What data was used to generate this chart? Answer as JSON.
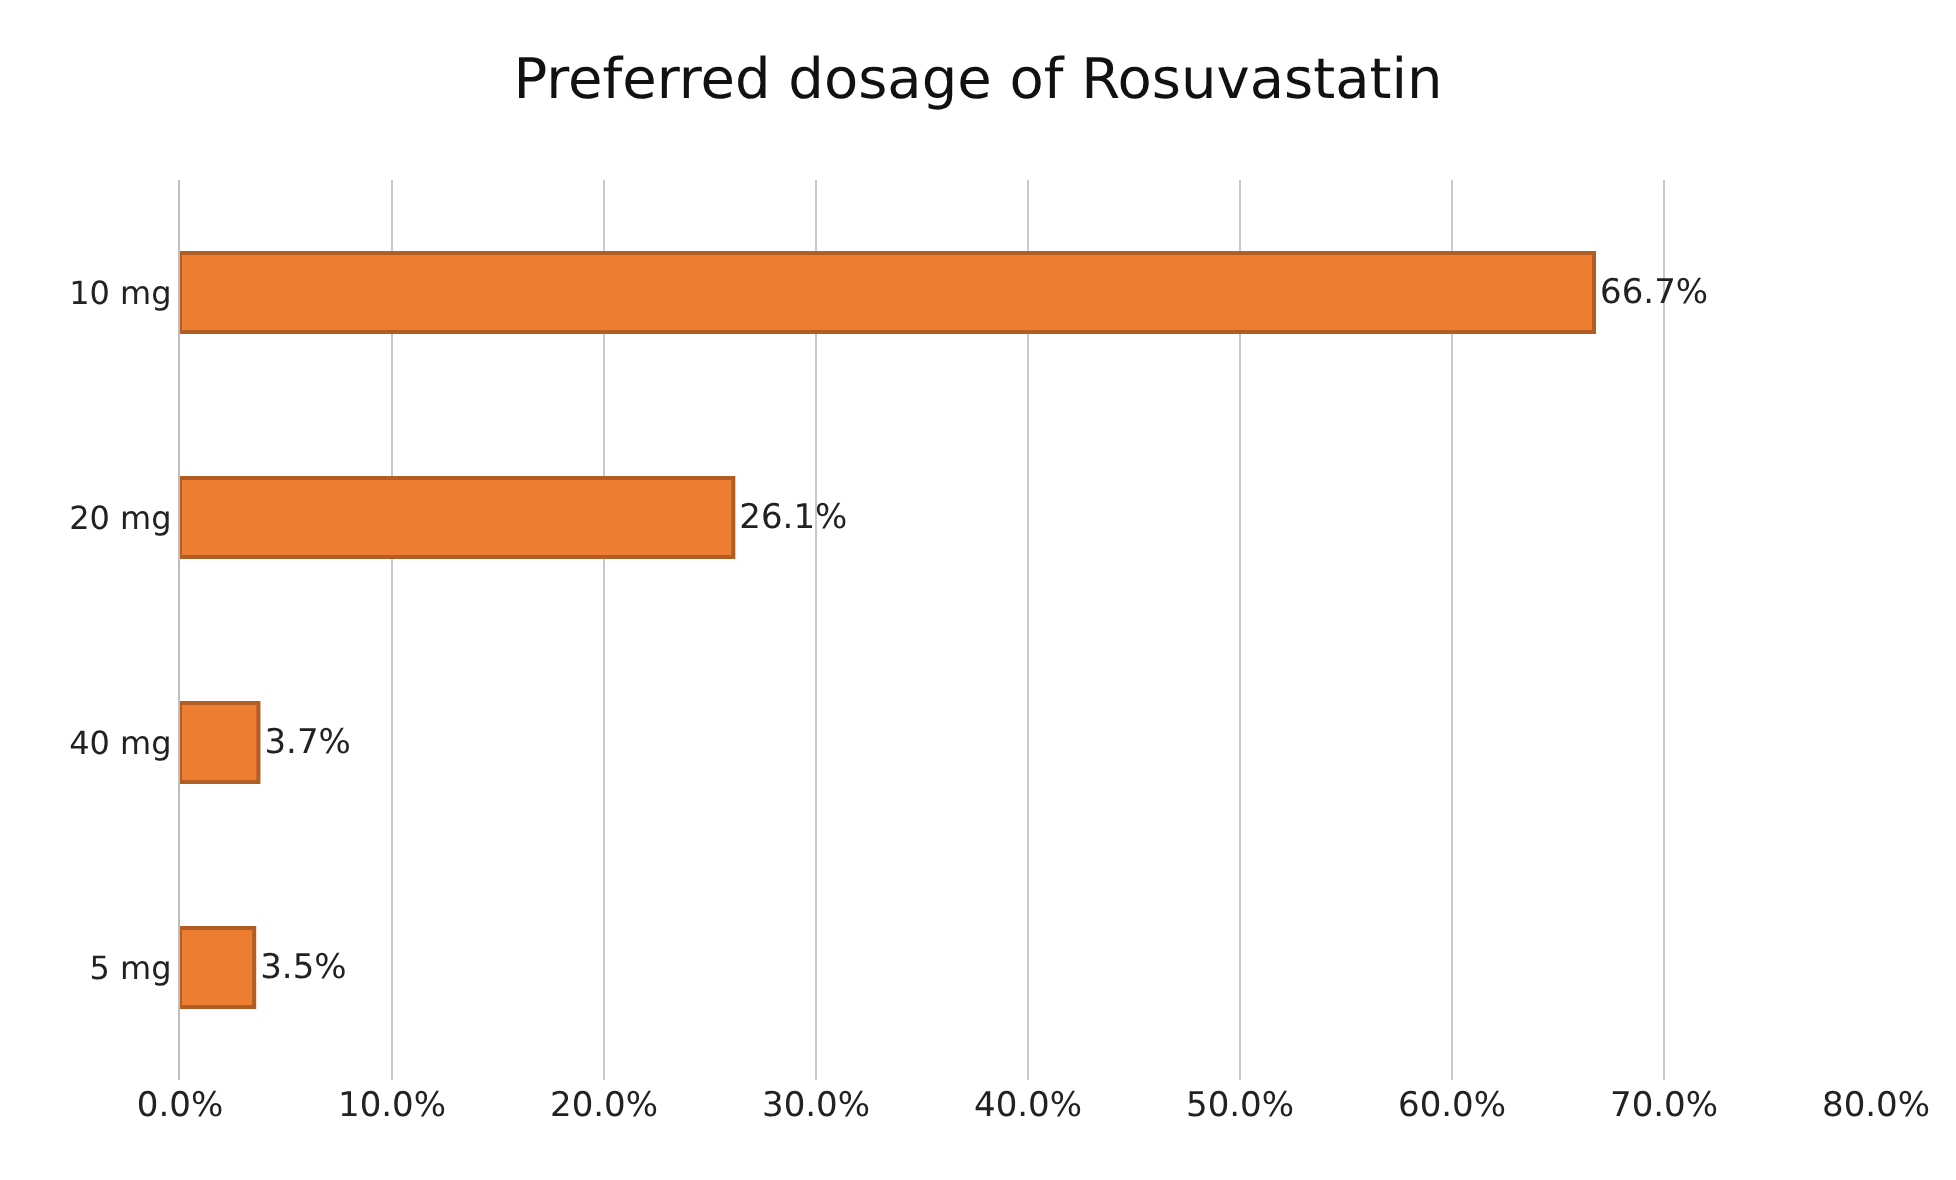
{
  "chart_data": {
    "type": "bar",
    "orientation": "horizontal",
    "title": "Preferred dosage of Rosuvastatin",
    "categories": [
      "10 mg",
      "20 mg",
      "40 mg",
      "5 mg"
    ],
    "values": [
      66.7,
      26.1,
      3.7,
      3.5
    ],
    "value_labels": [
      "66.7%",
      "26.1%",
      "3.7%",
      "3.5%"
    ],
    "color": "#ed7d31",
    "xlim": [
      0,
      80
    ],
    "xticks": [
      {
        "value": 0,
        "label": "0.0%"
      },
      {
        "value": 10,
        "label": "10.0%"
      },
      {
        "value": 20,
        "label": "20.0%"
      },
      {
        "value": 30,
        "label": "30.0%"
      },
      {
        "value": 40,
        "label": "40.0%"
      },
      {
        "value": 50,
        "label": "50.0%"
      },
      {
        "value": 60,
        "label": "60.0%"
      },
      {
        "value": 70,
        "label": "70.0%"
      },
      {
        "value": 80,
        "label": "80.0%"
      }
    ],
    "grid": "x",
    "legend": false
  }
}
